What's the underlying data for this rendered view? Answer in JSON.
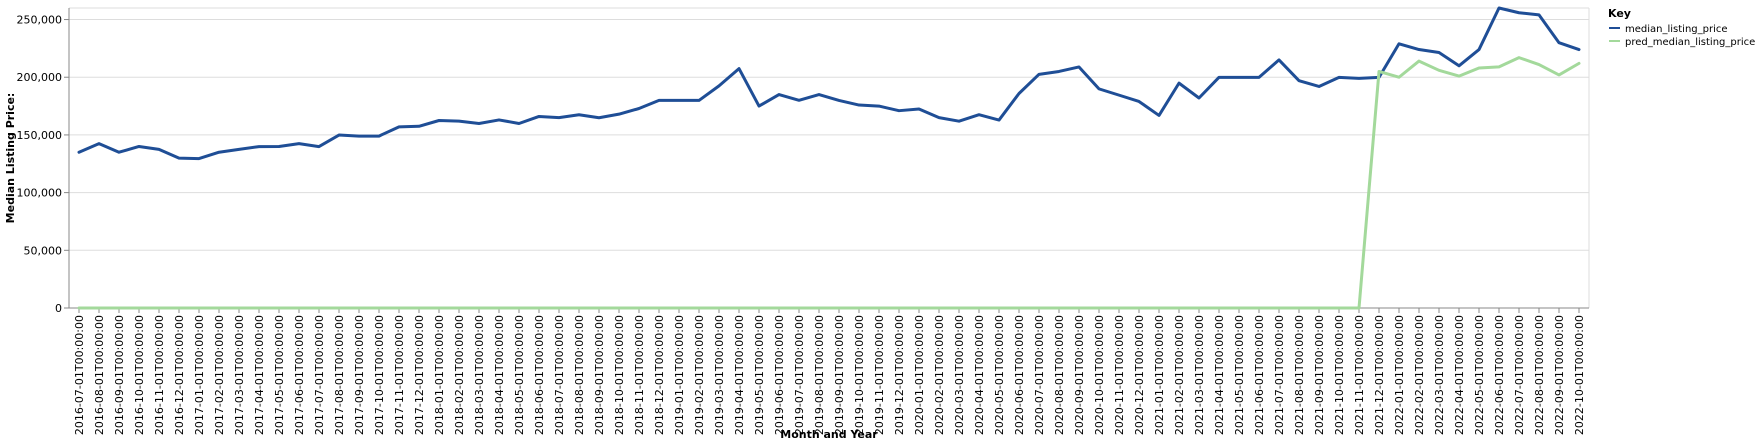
{
  "chart_data": {
    "type": "line",
    "xlabel": "Month and Year",
    "ylabel": "Median Listing Price:",
    "ylim": [
      0,
      260000
    ],
    "yticks": [
      0,
      50000,
      100000,
      150000,
      200000,
      250000
    ],
    "ytick_labels": [
      "0",
      "50,000",
      "100,000",
      "150,000",
      "200,000",
      "250,000"
    ],
    "grid": true,
    "legend": {
      "title": "Key",
      "placement": "top-right"
    },
    "x": [
      "2016-07-01T00:00:00",
      "2016-08-01T00:00:00",
      "2016-09-01T00:00:00",
      "2016-10-01T00:00:00",
      "2016-11-01T00:00:00",
      "2016-12-01T00:00:00",
      "2017-01-01T00:00:00",
      "2017-02-01T00:00:00",
      "2017-03-01T00:00:00",
      "2017-04-01T00:00:00",
      "2017-05-01T00:00:00",
      "2017-06-01T00:00:00",
      "2017-07-01T00:00:00",
      "2017-08-01T00:00:00",
      "2017-09-01T00:00:00",
      "2017-10-01T00:00:00",
      "2017-11-01T00:00:00",
      "2017-12-01T00:00:00",
      "2018-01-01T00:00:00",
      "2018-02-01T00:00:00",
      "2018-03-01T00:00:00",
      "2018-04-01T00:00:00",
      "2018-05-01T00:00:00",
      "2018-06-01T00:00:00",
      "2018-07-01T00:00:00",
      "2018-08-01T00:00:00",
      "2018-09-01T00:00:00",
      "2018-10-01T00:00:00",
      "2018-11-01T00:00:00",
      "2018-12-01T00:00:00",
      "2019-01-01T00:00:00",
      "2019-02-01T00:00:00",
      "2019-03-01T00:00:00",
      "2019-04-01T00:00:00",
      "2019-05-01T00:00:00",
      "2019-06-01T00:00:00",
      "2019-07-01T00:00:00",
      "2019-08-01T00:00:00",
      "2019-09-01T00:00:00",
      "2019-10-01T00:00:00",
      "2019-11-01T00:00:00",
      "2019-12-01T00:00:00",
      "2020-01-01T00:00:00",
      "2020-02-01T00:00:00",
      "2020-03-01T00:00:00",
      "2020-04-01T00:00:00",
      "2020-05-01T00:00:00",
      "2020-06-01T00:00:00",
      "2020-07-01T00:00:00",
      "2020-08-01T00:00:00",
      "2020-09-01T00:00:00",
      "2020-10-01T00:00:00",
      "2020-11-01T00:00:00",
      "2020-12-01T00:00:00",
      "2021-01-01T00:00:00",
      "2021-02-01T00:00:00",
      "2021-03-01T00:00:00",
      "2021-04-01T00:00:00",
      "2021-05-01T00:00:00",
      "2021-06-01T00:00:00",
      "2021-07-01T00:00:00",
      "2021-08-01T00:00:00",
      "2021-09-01T00:00:00",
      "2021-10-01T00:00:00",
      "2021-11-01T00:00:00",
      "2021-12-01T00:00:00",
      "2022-01-01T00:00:00",
      "2022-02-01T00:00:00",
      "2022-03-01T00:00:00",
      "2022-04-01T00:00:00",
      "2022-05-01T00:00:00",
      "2022-06-01T00:00:00",
      "2022-07-01T00:00:00",
      "2022-08-01T00:00:00",
      "2022-09-01T00:00:00",
      "2022-10-01T00:00:00"
    ],
    "series": [
      {
        "name": "median_listing_price",
        "color": "#1f4e96",
        "values": [
          135000,
          142500,
          135000,
          140000,
          137500,
          129900,
          129500,
          135000,
          137500,
          139900,
          140000,
          142500,
          139900,
          149900,
          149000,
          149000,
          157000,
          157500,
          162500,
          162000,
          159900,
          163000,
          159900,
          166000,
          165000,
          167500,
          164900,
          168000,
          172900,
          179900,
          179900,
          179900,
          192500,
          207500,
          175000,
          185000,
          180000,
          185000,
          179900,
          175900,
          175000,
          171000,
          172500,
          165000,
          161900,
          167500,
          162900,
          185900,
          202500,
          205000,
          208900,
          189900,
          184500,
          179000,
          166900,
          194900,
          182000,
          199900,
          199900,
          199900,
          215000,
          197000,
          192000,
          199900,
          199000,
          199900,
          229000,
          224000,
          221400,
          209900,
          224000,
          260000,
          255900,
          254000,
          229900,
          224000
        ]
      },
      {
        "name": "pred_median_listing_price",
        "color": "#a3d99b",
        "values": [
          0,
          0,
          0,
          0,
          0,
          0,
          0,
          0,
          0,
          0,
          0,
          0,
          0,
          0,
          0,
          0,
          0,
          0,
          0,
          0,
          0,
          0,
          0,
          0,
          0,
          0,
          0,
          0,
          0,
          0,
          0,
          0,
          0,
          0,
          0,
          0,
          0,
          0,
          0,
          0,
          0,
          0,
          0,
          0,
          0,
          0,
          0,
          0,
          0,
          0,
          0,
          0,
          0,
          0,
          0,
          0,
          0,
          0,
          0,
          0,
          0,
          0,
          0,
          0,
          0,
          205000,
          200000,
          214000,
          206000,
          201000,
          208000,
          209000,
          217000,
          211000,
          202000,
          212000
        ]
      }
    ]
  }
}
